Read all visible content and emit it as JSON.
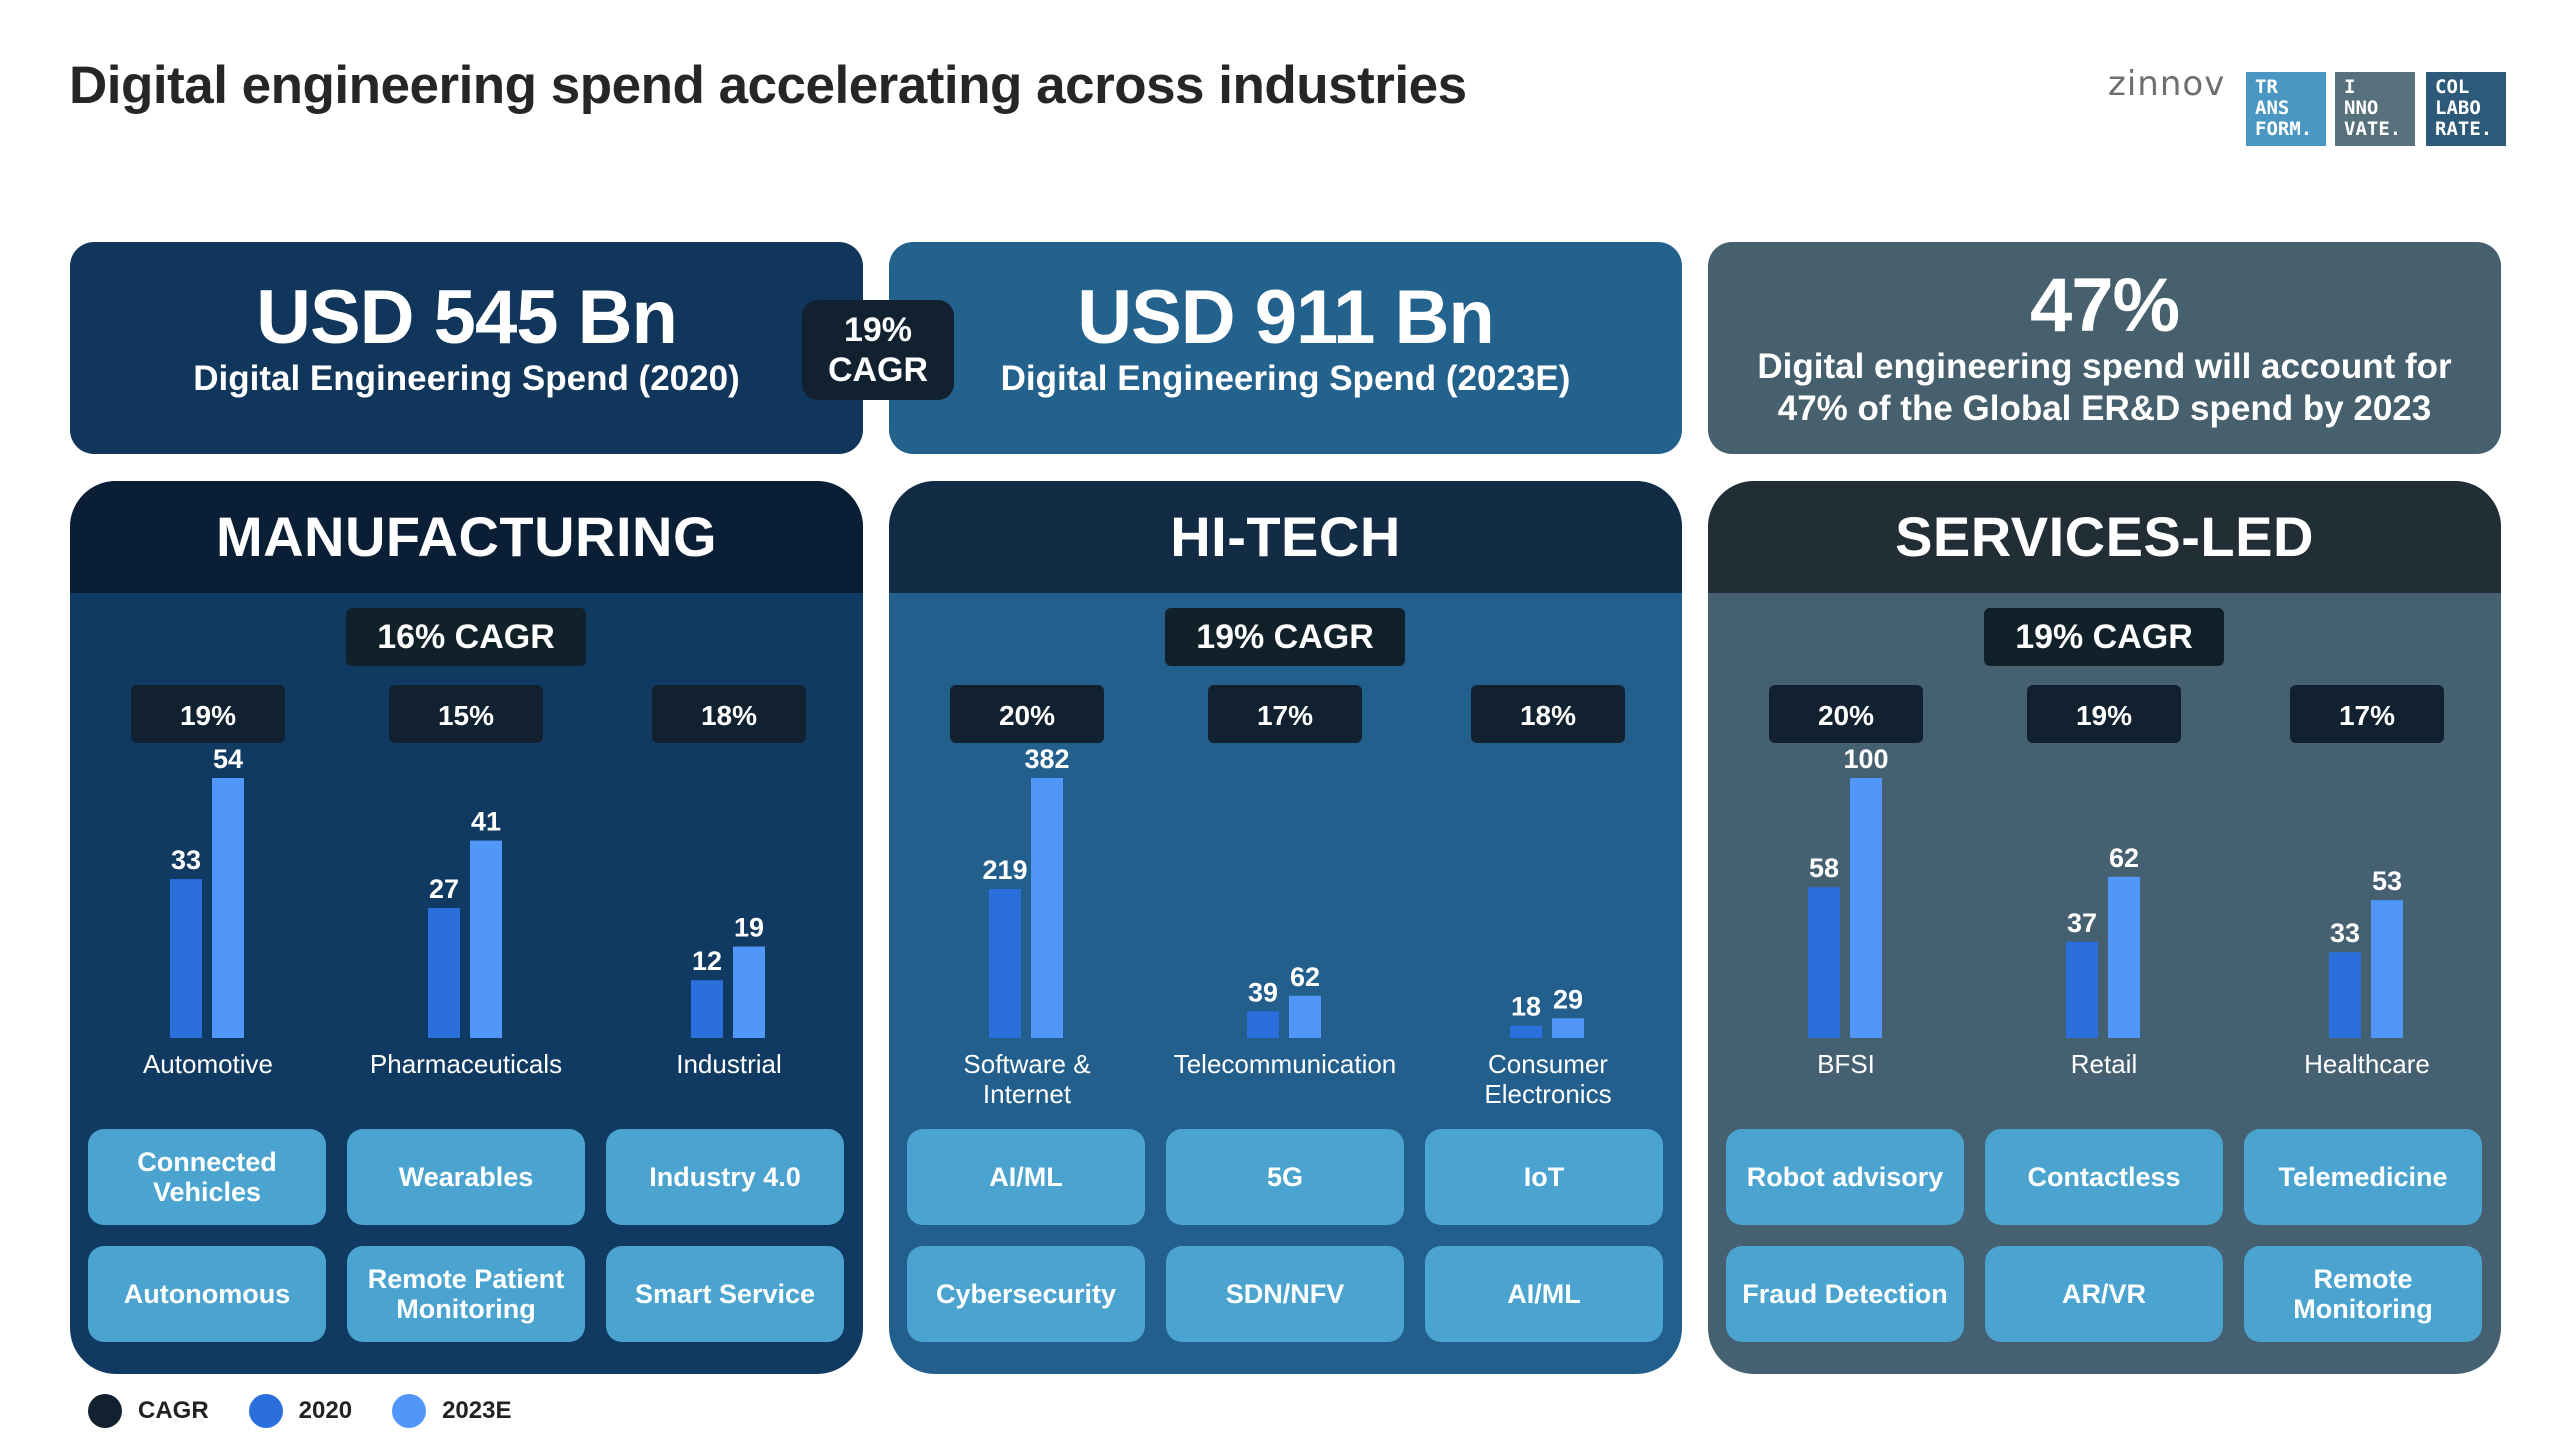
{
  "title": "Digital engineering spend accelerating across industries",
  "logo": {
    "word": "zinnov",
    "tiles": [
      {
        "text": "TR\nANS\nFORM.",
        "color": "#4a97c4"
      },
      {
        "text": "I\nNNO\nVATE.",
        "color": "#56707c"
      },
      {
        "text": "COL\nLABO\nRATE.",
        "color": "#2c5a78"
      }
    ]
  },
  "summary": {
    "box1": {
      "big": "USD 545 Bn",
      "sub": "Digital Engineering Spend (2020)"
    },
    "cagr_pill": {
      "line1": "19%",
      "line2": "CAGR"
    },
    "box2": {
      "big": "USD 911 Bn",
      "sub": "Digital Engineering Spend (2023E)"
    },
    "box3": {
      "big": "47%",
      "line1": "Digital engineering spend will account for",
      "line2": "47% of the Global ER&D spend by 2023"
    }
  },
  "colors": {
    "bar_2020": "#2a6fdc",
    "bar_2023": "#5197fa",
    "cagr": "#11212f"
  },
  "legend": {
    "cagr": "CAGR",
    "y2020": "2020",
    "y2023": "2023E"
  },
  "chart_data": [
    {
      "type": "bar",
      "title": "MANUFACTURING",
      "total_cagr": "16% CAGR",
      "categories": [
        "Automotive",
        "Pharmaceuticals",
        "Industrial"
      ],
      "cagr": [
        "19%",
        "15%",
        "18%"
      ],
      "series": [
        {
          "name": "2020",
          "values": [
            33,
            27,
            12
          ]
        },
        {
          "name": "2023E",
          "values": [
            54,
            41,
            19
          ]
        }
      ],
      "chips": [
        "Connected Vehicles",
        "Wearables",
        "Industry 4.0",
        "Autonomous",
        "Remote Patient Monitoring",
        "Smart Service"
      ]
    },
    {
      "type": "bar",
      "title": "HI-TECH",
      "total_cagr": "19% CAGR",
      "categories": [
        "Software & Internet",
        "Telecommunication",
        "Consumer Electronics"
      ],
      "cagr": [
        "20%",
        "17%",
        "18%"
      ],
      "series": [
        {
          "name": "2020",
          "values": [
            219,
            39,
            18
          ]
        },
        {
          "name": "2023E",
          "values": [
            382,
            62,
            29
          ]
        }
      ],
      "chips": [
        "AI/ML",
        "5G",
        "IoT",
        "Cybersecurity",
        "SDN/NFV",
        "AI/ML"
      ]
    },
    {
      "type": "bar",
      "title": "SERVICES-LED",
      "total_cagr": "19% CAGR",
      "categories": [
        "BFSI",
        "Retail",
        "Healthcare"
      ],
      "cagr": [
        "20%",
        "19%",
        "17%"
      ],
      "series": [
        {
          "name": "2020",
          "values": [
            58,
            37,
            33
          ]
        },
        {
          "name": "2023E",
          "values": [
            100,
            62,
            53
          ]
        }
      ],
      "chips": [
        "Robot advisory",
        "Contactless",
        "Telemedicine",
        "Fraud Detection",
        "AR/VR",
        "Remote Monitoring"
      ]
    }
  ]
}
